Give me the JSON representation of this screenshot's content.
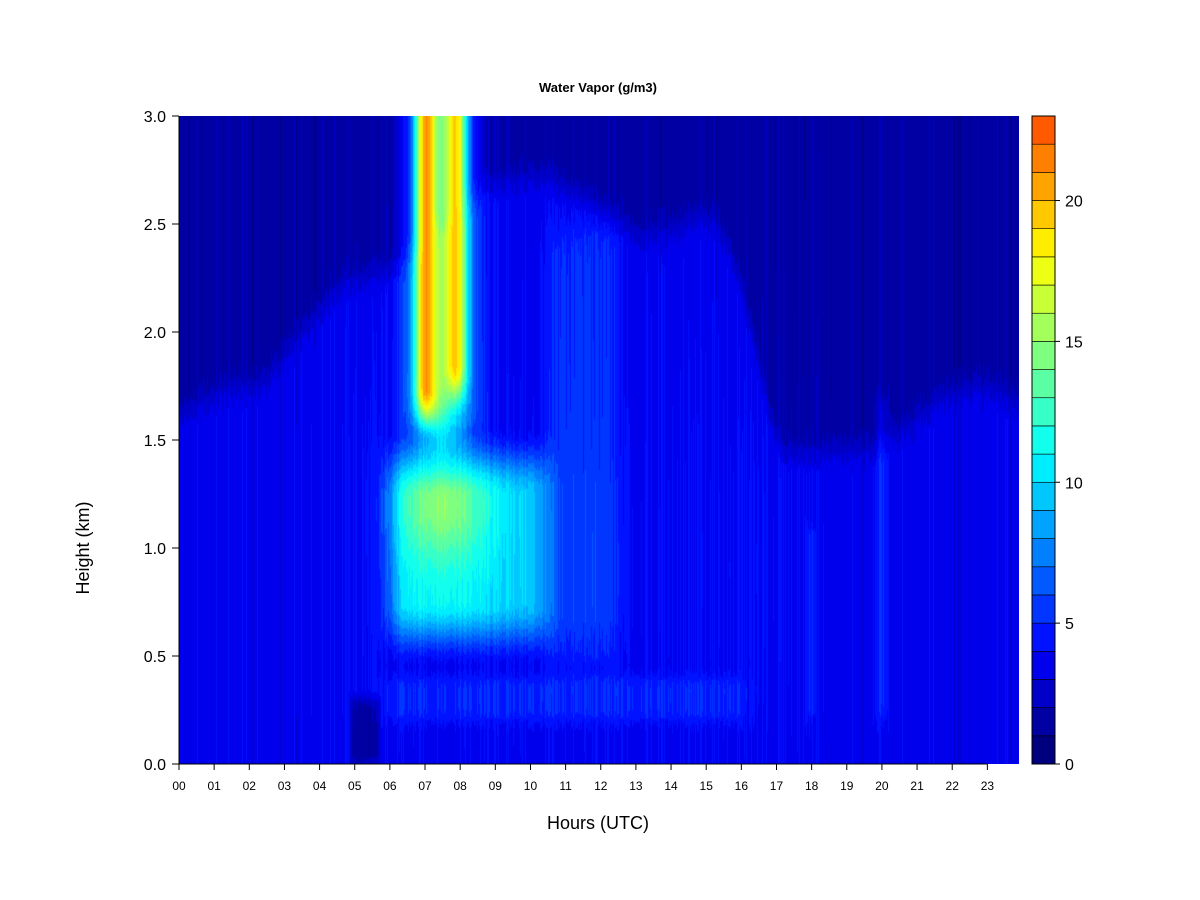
{
  "chart_data": {
    "type": "heatmap",
    "title": "Water Vapor (g/m3)",
    "xlabel": "Hours (UTC)",
    "ylabel": "Height (km)",
    "xlim": [
      0,
      23.9
    ],
    "ylim": [
      0.0,
      3.0
    ],
    "x_ticks": [
      "00",
      "01",
      "02",
      "03",
      "04",
      "05",
      "06",
      "07",
      "08",
      "09",
      "10",
      "11",
      "12",
      "13",
      "14",
      "15",
      "16",
      "17",
      "18",
      "19",
      "20",
      "21",
      "22",
      "23"
    ],
    "y_ticks": [
      "0.0",
      "0.5",
      "1.0",
      "1.5",
      "2.0",
      "2.5",
      "3.0"
    ],
    "colorbar": {
      "range": [
        0,
        23
      ],
      "step": 1,
      "ticks": [
        "0",
        "5",
        "10",
        "15",
        "20"
      ],
      "colors": [
        "#00007F",
        "#0000A3",
        "#0000C8",
        "#0000ED",
        "#0012FF",
        "#0036FF",
        "#005AFF",
        "#007FFF",
        "#00A3FF",
        "#00C8FF",
        "#00EDFF",
        "#12FFED",
        "#36FFC8",
        "#5AFFA3",
        "#7FFF7F",
        "#A3FF5A",
        "#C8FF36",
        "#EDFF12",
        "#FFED00",
        "#FFC800",
        "#FFA300",
        "#FF7F00",
        "#FF5A00",
        "#FF3600",
        "#FF1200",
        "#ED0000",
        "#C80000",
        "#A30000",
        "#7F0000"
      ]
    },
    "colormap": "jet",
    "field_features": [
      {
        "feature": "background_low_level",
        "hours": [
          0,
          24
        ],
        "height_km": [
          0.0,
          1.6
        ],
        "value": 3.5
      },
      {
        "feature": "dry_upper_layer",
        "hours": [
          0,
          24
        ],
        "height_km": [
          1.6,
          3.0
        ],
        "value": 1.5
      },
      {
        "feature": "moist_plume_core_a",
        "hour": 7.05,
        "height_km": [
          1.6,
          3.0
        ],
        "value": 21.5
      },
      {
        "feature": "moist_plume_core_b",
        "hour": 7.85,
        "height_km": [
          1.7,
          3.0
        ],
        "value": 20.5
      },
      {
        "feature": "moist_mid_layer",
        "hours": [
          6.0,
          10.5
        ],
        "height_km": [
          0.6,
          1.4
        ],
        "value": 11.0
      },
      {
        "feature": "moist_region_11h",
        "hours": [
          10.5,
          12.5
        ],
        "height_km": [
          0.5,
          2.5
        ],
        "value": 6.0
      },
      {
        "feature": "surface_dry_gap",
        "hours": [
          4.9,
          5.7
        ],
        "height_km": [
          0.0,
          0.3
        ],
        "value": 1.5
      },
      {
        "feature": "moist_band_18h",
        "hour": 18.0,
        "height_km": [
          0.2,
          1.1
        ],
        "value": 5.0
      },
      {
        "feature": "moist_band_20h",
        "hour": 20.0,
        "height_km": [
          0.2,
          1.7
        ],
        "value": 5.5
      }
    ]
  }
}
